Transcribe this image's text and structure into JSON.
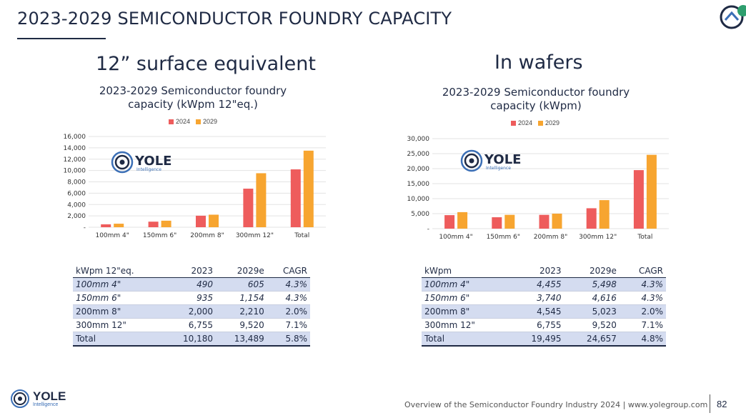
{
  "slide": {
    "title": "2023-2029 SEMICONDUCTOR FOUNDRY CAPACITY",
    "page_number": "82",
    "footer": "Overview of the Semiconductor Foundry Industry 2024 | www.yolegroup.com"
  },
  "logo": {
    "name": "YOLE",
    "sub": "Intelligence"
  },
  "colors": {
    "s2024": "#ee5c5c",
    "s2029": "#f7a530",
    "navy": "#1f2a44",
    "shade": "#d4dcf0"
  },
  "left": {
    "section_title": "12” surface equivalent",
    "chart_title_line1": "2023-2029 Semiconductor foundry",
    "chart_title_line2": "capacity (kWpm 12\"eq.)",
    "table": {
      "headers": [
        "kWpm 12\"eq.",
        "2023",
        "2029e",
        "CAGR"
      ],
      "rows": [
        [
          "100mm 4\"",
          "490",
          "605",
          "4.3%"
        ],
        [
          "150mm 6\"",
          "935",
          "1,154",
          "4.3%"
        ],
        [
          "200mm 8\"",
          "2,000",
          "2,210",
          "2.0%"
        ],
        [
          "300mm 12\"",
          "6,755",
          "9,520",
          "7.1%"
        ],
        [
          "Total",
          "10,180",
          "13,489",
          "5.8%"
        ]
      ]
    }
  },
  "right": {
    "section_title": "In wafers",
    "chart_title_line1": "2023-2029 Semiconductor foundry",
    "chart_title_line2": "capacity (kWpm)",
    "table": {
      "headers": [
        "kWpm",
        "2023",
        "2029e",
        "CAGR"
      ],
      "rows": [
        [
          "100mm 4\"",
          "4,455",
          "5,498",
          "4.3%"
        ],
        [
          "150mm 6\"",
          "3,740",
          "4,616",
          "4.3%"
        ],
        [
          "200mm 8\"",
          "4,545",
          "5,023",
          "2.0%"
        ],
        [
          "300mm 12\"",
          "6,755",
          "9,520",
          "7.1%"
        ],
        [
          "Total",
          "19,495",
          "24,657",
          "4.8%"
        ]
      ]
    }
  },
  "chart_data": [
    {
      "type": "bar",
      "title": "2023-2029 Semiconductor foundry capacity (kWpm 12\"eq.)",
      "categories": [
        "100mm 4\"",
        "150mm 6\"",
        "200mm 8\"",
        "300mm 12\"",
        "Total"
      ],
      "series": [
        {
          "name": "2024",
          "values": [
            510,
            980,
            2030,
            6800,
            10200
          ]
        },
        {
          "name": "2029",
          "values": [
            620,
            1150,
            2210,
            9520,
            13500
          ]
        }
      ],
      "ylim": [
        0,
        16000
      ],
      "yticks": [
        0,
        2000,
        4000,
        6000,
        8000,
        10000,
        12000,
        14000,
        16000
      ],
      "ytick_labels": [
        "-",
        "2,000",
        "4,000",
        "6,000",
        "8,000",
        "10,000",
        "12,000",
        "14,000",
        "16,000"
      ],
      "grid": true,
      "legend": "top-center"
    },
    {
      "type": "bar",
      "title": "2023-2029 Semiconductor foundry capacity (kWpm)",
      "categories": [
        "100mm 4\"",
        "150mm 6\"",
        "200mm 8\"",
        "300mm 12\"",
        "Total"
      ],
      "series": [
        {
          "name": "2024",
          "values": [
            4500,
            3800,
            4600,
            6800,
            19500
          ]
        },
        {
          "name": "2029",
          "values": [
            5500,
            4600,
            5000,
            9500,
            24600
          ]
        }
      ],
      "ylim": [
        0,
        30000
      ],
      "yticks": [
        0,
        5000,
        10000,
        15000,
        20000,
        25000,
        30000
      ],
      "ytick_labels": [
        "-",
        "5,000",
        "10,000",
        "15,000",
        "20,000",
        "25,000",
        "30,000"
      ],
      "grid": true,
      "legend": "top-center"
    }
  ]
}
